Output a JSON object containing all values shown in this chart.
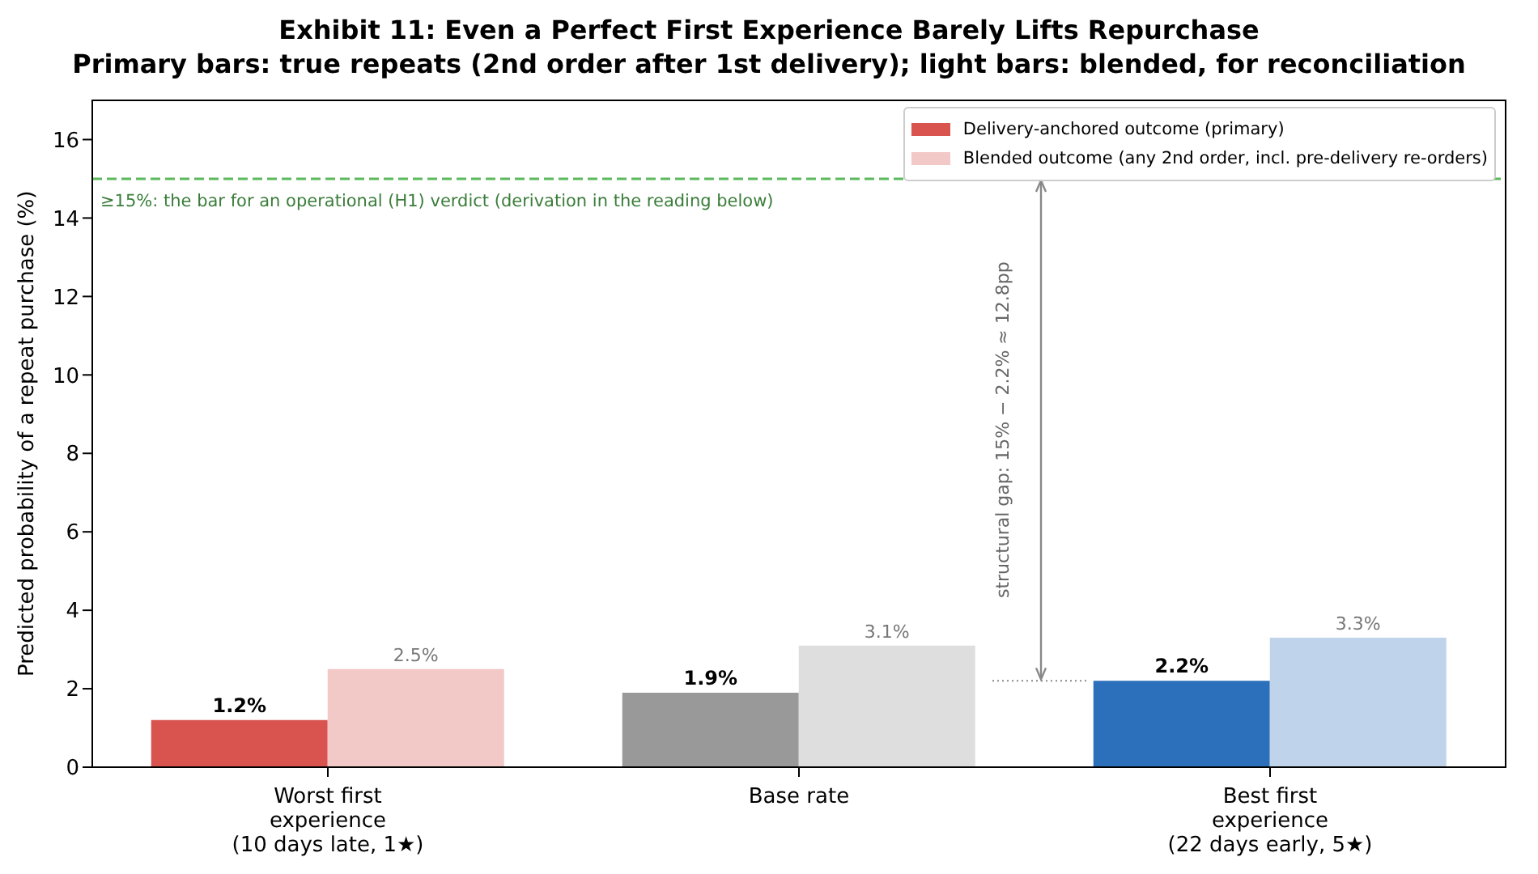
{
  "chart_data": {
    "type": "bar",
    "title": "Exhibit 11: Even a Perfect First Experience Barely Lifts Repurchase",
    "subtitle": "Primary bars: true repeats (2nd order after 1st delivery); light bars: blended, for reconciliation",
    "ylabel": "Predicted probability of a repeat purchase (%)",
    "categories": [
      "Worst first\nexperience\n(10 days late, 1★)",
      "Base rate",
      "Best first\nexperience\n(22 days early, 5★)"
    ],
    "series": [
      {
        "name": "Delivery-anchored outcome (primary)",
        "color": "#d9534f",
        "colors": [
          "#d9534f",
          "#999999",
          "#2c6fbb"
        ],
        "values": [
          1.2,
          1.9,
          2.2
        ],
        "value_labels": [
          "1.2%",
          "1.9%",
          "2.2%"
        ]
      },
      {
        "name": "Blended outcome (any 2nd order, incl. pre-delivery re-orders)",
        "color": "#f2c9c7",
        "colors": [
          "#f2c9c7",
          "#dedede",
          "#bfd3ea"
        ],
        "values": [
          2.5,
          3.1,
          3.3
        ],
        "value_labels": [
          "2.5%",
          "3.1%",
          "3.3%"
        ]
      }
    ],
    "ylim": [
      0,
      17
    ],
    "yticks": [
      0,
      2,
      4,
      6,
      8,
      10,
      12,
      14,
      16
    ],
    "legend": "top right",
    "ref_lines": [
      {
        "axis": "y",
        "value": 15,
        "label": "≥15%: the bar for an operational (H1) verdict (derivation in the reading below)",
        "color": "#5cb85c",
        "line_style": "dashed"
      }
    ],
    "annotations": [
      "structural gap: 15% − 2.2% ≈ 12.8pp"
    ]
  }
}
